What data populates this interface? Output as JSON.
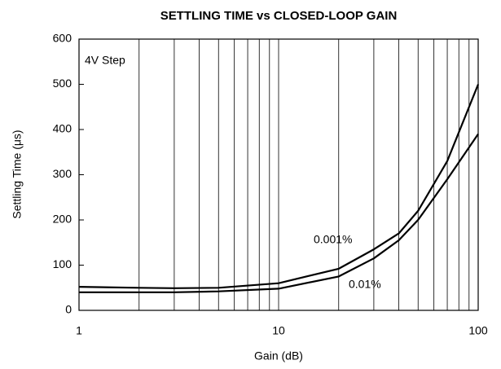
{
  "chart_data": {
    "type": "line",
    "title": "SETTLING TIME vs CLOSED-LOOP GAIN",
    "xlabel": "Gain (dB)",
    "ylabel": "Settling Time (μs)",
    "annotations": [
      "4V Step"
    ],
    "xscale": "log",
    "xlim": [
      1,
      100
    ],
    "xticks": [
      1,
      10,
      100
    ],
    "ylim": [
      0,
      600
    ],
    "yticks": [
      0,
      100,
      200,
      300,
      400,
      500,
      600
    ],
    "grid": "x",
    "series": [
      {
        "name": "0.001%",
        "color": "#000000",
        "x": [
          1,
          2,
          3,
          5,
          10,
          20,
          30,
          40,
          50,
          70,
          100
        ],
        "values": [
          52,
          50,
          49,
          50,
          60,
          92,
          135,
          170,
          220,
          330,
          500
        ]
      },
      {
        "name": "0.01%",
        "color": "#000000",
        "x": [
          1,
          2,
          3,
          5,
          10,
          20,
          30,
          40,
          50,
          70,
          100
        ],
        "values": [
          40,
          40,
          40,
          42,
          48,
          75,
          115,
          155,
          200,
          290,
          390
        ]
      }
    ]
  }
}
